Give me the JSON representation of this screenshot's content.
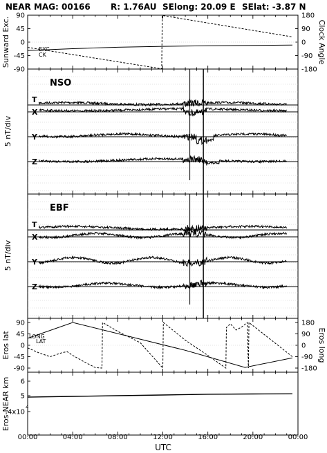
{
  "header": {
    "mission": "NEAR MAG: 00166",
    "range": "R: 1.76AU",
    "selong": "SElong:   20.09 E",
    "selat": "SElat:   -3.87 N"
  },
  "xaxis": {
    "label": "UTC",
    "ticks": [
      "00:00",
      "04:00",
      "08:00",
      "12:00",
      "16:00",
      "20:00",
      "00:00"
    ],
    "range_hours": [
      0,
      24
    ]
  },
  "panels": {
    "angles": {
      "left_label": "Sunward Exc.",
      "right_label": "Clock Angle",
      "left_ticks": [
        "90",
        "45",
        "0",
        "-45",
        "-90"
      ],
      "right_ticks": [
        "180",
        "90",
        "0",
        "-90",
        "-180"
      ],
      "tag_exc": "EXC",
      "tag_ck": "CK"
    },
    "nso": {
      "title": "NSO",
      "ylabel": "5 nT/div",
      "components": [
        "T",
        "X",
        "Y",
        "Z"
      ]
    },
    "ebf": {
      "title": "EBF",
      "ylabel": "5 nT/div",
      "components": [
        "T",
        "X",
        "Y",
        "Z"
      ]
    },
    "eros": {
      "left_label": "Eros lat",
      "right_label": "Eros long",
      "left_ticks": [
        "90",
        "45",
        "0",
        "-45",
        "-90"
      ],
      "right_ticks": [
        "180",
        "90",
        "0",
        "-90",
        "-180"
      ],
      "tag_long": "LONG",
      "tag_lat": "LAT"
    },
    "range": {
      "ylabel": "Eros-NEAR km",
      "ticks": [
        "6",
        "5",
        "4x10"
      ],
      "tick_exponent": "4"
    }
  },
  "chart_data": [
    {
      "type": "line",
      "title": "",
      "x_unit": "hours UTC",
      "ylim_left": [
        -90,
        90
      ],
      "ylim_right": [
        -180,
        180
      ],
      "series": [
        {
          "name": "EXC",
          "axis": "left",
          "x": [
            0,
            4,
            8,
            12,
            16,
            20,
            23.5
          ],
          "y": [
            -28,
            -22,
            -17,
            -14,
            -12,
            -11,
            -10
          ]
        },
        {
          "name": "CK",
          "axis": "right",
          "x": [
            0,
            11.9,
            11.95,
            23.5
          ],
          "y": [
            -35,
            -178,
            178,
            35
          ]
        }
      ]
    },
    {
      "type": "line",
      "title": "NSO",
      "ylabel": "5 nT/div",
      "series": [
        {
          "name": "T"
        },
        {
          "name": "X"
        },
        {
          "name": "Y"
        },
        {
          "name": "Z"
        }
      ],
      "events_hours": [
        14.4,
        15.6
      ]
    },
    {
      "type": "line",
      "title": "EBF",
      "ylabel": "5 nT/div",
      "series": [
        {
          "name": "T"
        },
        {
          "name": "X"
        },
        {
          "name": "Y"
        },
        {
          "name": "Z"
        }
      ],
      "events_hours": [
        14.4,
        15.6
      ]
    },
    {
      "type": "line",
      "title": "",
      "ylim_left": [
        -90,
        90
      ],
      "ylim_right": [
        -180,
        180
      ],
      "series": [
        {
          "name": "LAT",
          "axis": "left",
          "x": [
            0,
            1,
            2,
            3,
            3.5,
            4,
            5,
            6,
            6.6,
            6.65,
            8,
            10,
            12,
            12.05,
            14,
            16,
            17.6,
            17.65,
            18,
            18.5,
            19,
            19.5,
            19.6,
            19.65,
            23.5
          ],
          "y": [
            -10,
            -30,
            -45,
            -30,
            -25,
            -40,
            -65,
            -88,
            -90,
            90,
            55,
            10,
            -90,
            90,
            20,
            -40,
            -90,
            70,
            85,
            60,
            72,
            90,
            -90,
            90,
            -45
          ]
        },
        {
          "name": "LONG",
          "axis": "right",
          "x": [
            0,
            4,
            14,
            19.3,
            23.5
          ],
          "y": [
            55,
            180,
            -40,
            -175,
            -100
          ]
        }
      ]
    },
    {
      "type": "line",
      "title": "",
      "ylabel": "Eros-NEAR km",
      "series": [
        {
          "name": "range",
          "x": [
            0,
            4,
            8,
            12,
            16,
            20,
            23.5
          ],
          "y": [
            49000,
            49500,
            50000,
            50500,
            51000,
            51200,
            51300
          ]
        }
      ]
    }
  ]
}
